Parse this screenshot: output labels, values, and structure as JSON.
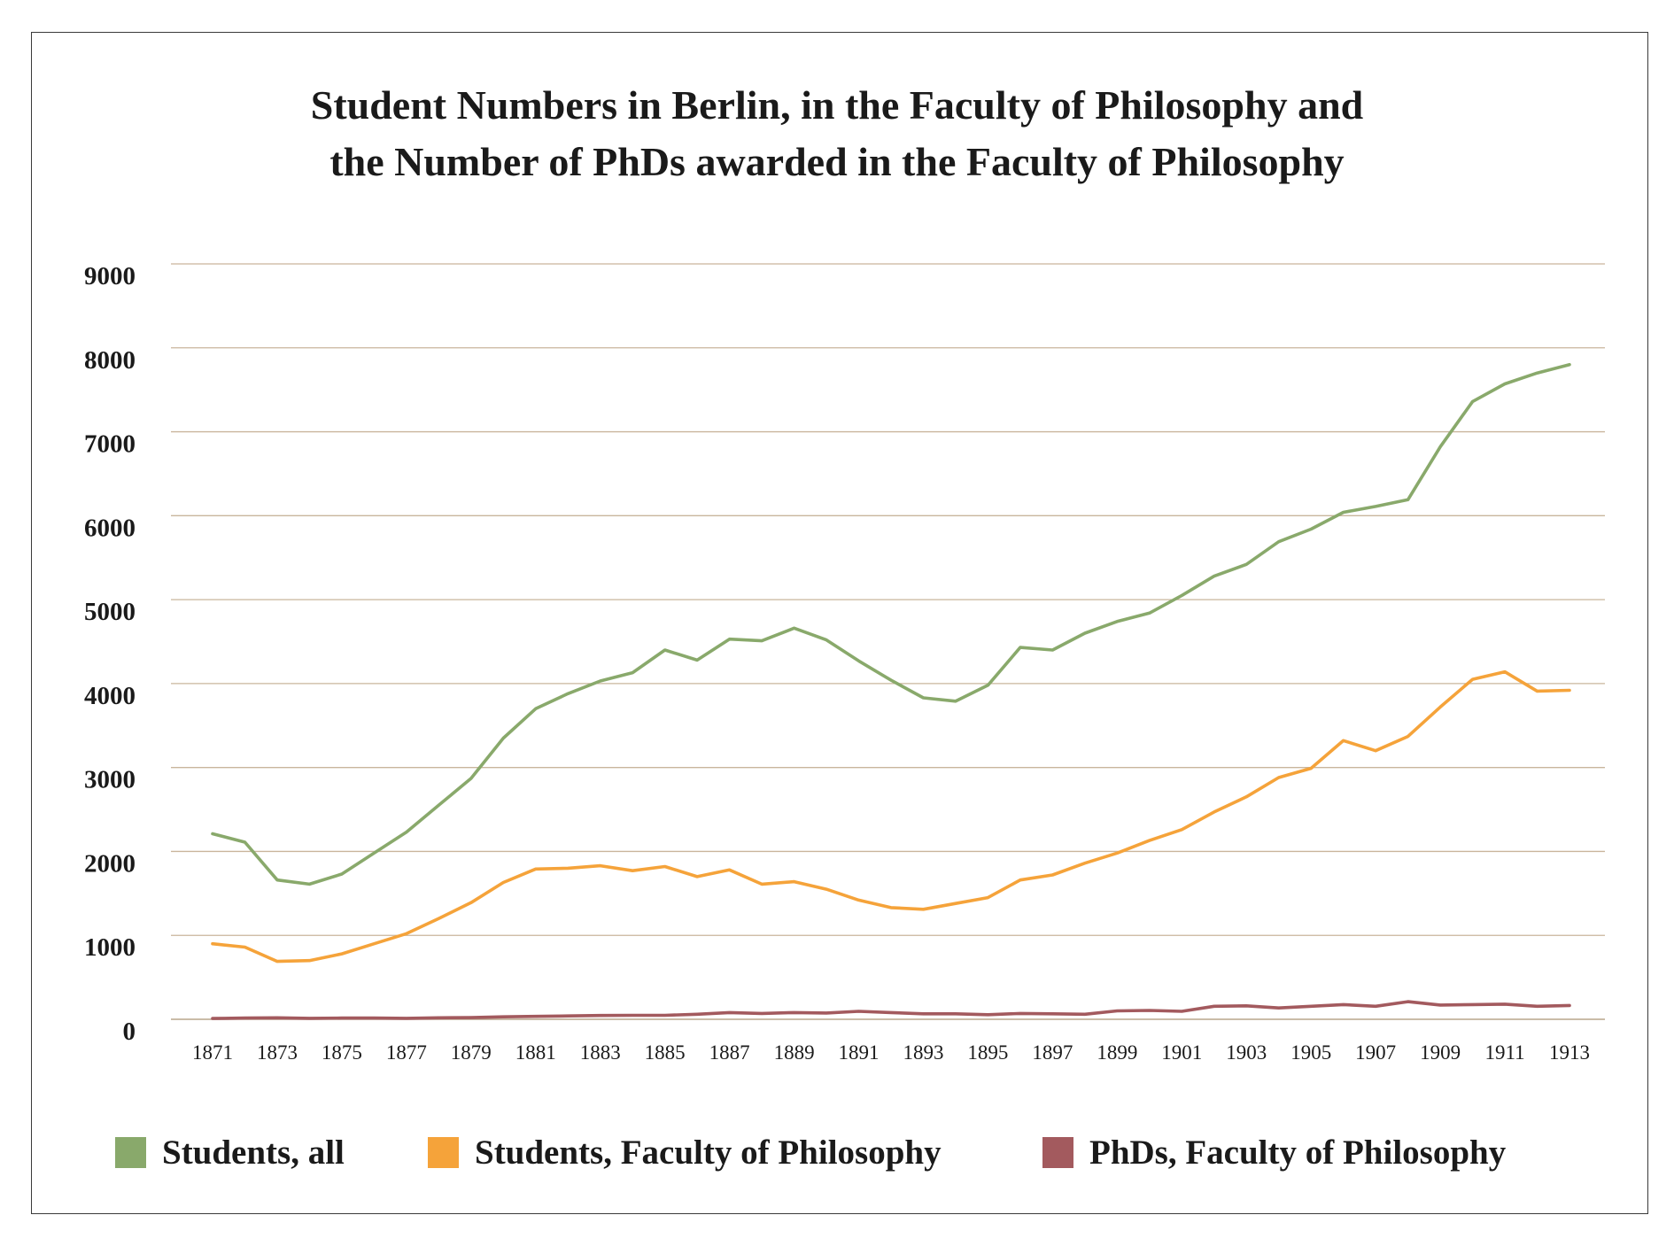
{
  "chart_data": {
    "type": "line",
    "title": [
      "Student Numbers in Berlin, in the Faculty of Philosophy and",
      "the Number of PhDs awarded in the Faculty of Philosophy"
    ],
    "xlabel": "",
    "ylabel": "",
    "ylim": [
      0,
      9000
    ],
    "yticks": [
      "0",
      "1000",
      "2000",
      "3000",
      "4000",
      "5000",
      "6000",
      "7000",
      "8000",
      "9000"
    ],
    "xticks": [
      "1871",
      "1873",
      "1875",
      "1877",
      "1879",
      "1881",
      "1883",
      "1885",
      "1887",
      "1889",
      "1891",
      "1893",
      "1895",
      "1897",
      "1899",
      "1901",
      "1903",
      "1905",
      "1907",
      "1909",
      "1911",
      "1913"
    ],
    "x": [
      1871,
      1872,
      1873,
      1874,
      1875,
      1876,
      1877,
      1878,
      1879,
      1880,
      1881,
      1882,
      1883,
      1884,
      1885,
      1886,
      1887,
      1888,
      1889,
      1890,
      1891,
      1892,
      1893,
      1894,
      1895,
      1896,
      1897,
      1898,
      1899,
      1900,
      1901,
      1902,
      1903,
      1904,
      1905,
      1906,
      1907,
      1908,
      1909,
      1910,
      1911,
      1912,
      1913
    ],
    "grid": true,
    "legend_position": "bottom",
    "series": [
      {
        "name": "Students, all",
        "color": "#89a96b",
        "values": [
          2210,
          2110,
          1660,
          1610,
          1730,
          1980,
          2230,
          2550,
          2870,
          3350,
          3700,
          3880,
          4030,
          4130,
          4400,
          4280,
          4530,
          4510,
          4660,
          4520,
          4270,
          4040,
          3830,
          3790,
          3980,
          4430,
          4400,
          4600,
          4740,
          4840,
          5050,
          5280,
          5420,
          5690,
          5840,
          6040,
          6110,
          6190,
          6820,
          7360,
          7570,
          7700,
          7800
        ]
      },
      {
        "name": "Students, Faculty of Philosophy",
        "color": "#f5a33a",
        "values": [
          900,
          860,
          690,
          700,
          780,
          900,
          1020,
          1200,
          1390,
          1630,
          1790,
          1800,
          1830,
          1770,
          1820,
          1700,
          1780,
          1610,
          1640,
          1550,
          1420,
          1330,
          1310,
          1380,
          1450,
          1660,
          1720,
          1860,
          1980,
          2130,
          2260,
          2470,
          2650,
          2880,
          2990,
          3320,
          3200,
          3370,
          3720,
          4050,
          4140,
          3910,
          3920
        ]
      },
      {
        "name": "PhDs, Faculty of Philosophy",
        "color": "#a35a5e",
        "values": [
          10,
          15,
          18,
          12,
          15,
          15,
          12,
          18,
          20,
          30,
          35,
          40,
          45,
          48,
          48,
          60,
          80,
          70,
          80,
          75,
          95,
          80,
          65,
          65,
          55,
          70,
          65,
          60,
          100,
          105,
          95,
          155,
          160,
          135,
          155,
          175,
          155,
          210,
          170,
          175,
          180,
          155,
          165
        ]
      }
    ]
  }
}
